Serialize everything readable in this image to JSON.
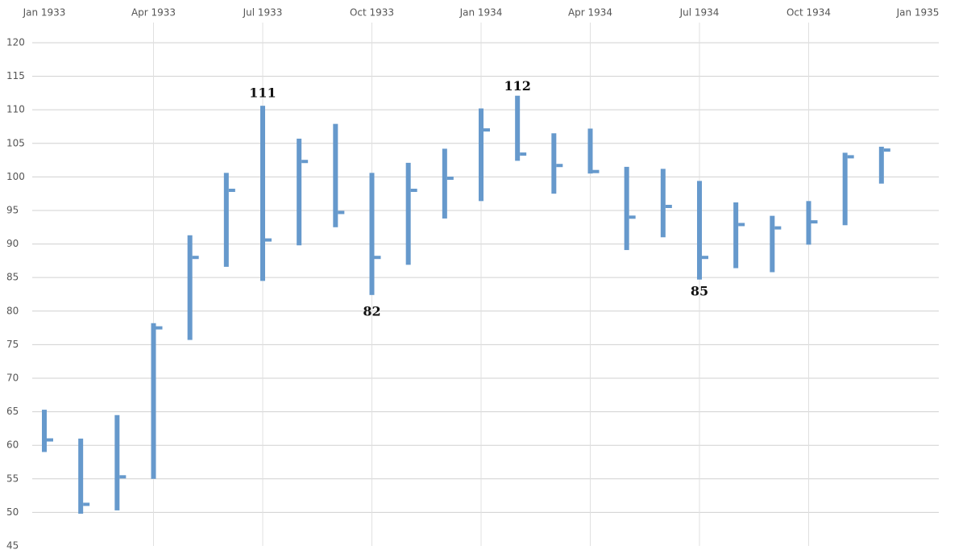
{
  "chart_data": {
    "type": "hlc",
    "x": [
      "1933-01",
      "1933-02",
      "1933-03",
      "1933-04",
      "1933-05",
      "1933-06",
      "1933-07",
      "1933-08",
      "1933-09",
      "1933-10",
      "1933-11",
      "1933-12",
      "1934-01",
      "1934-02",
      "1934-03",
      "1934-04",
      "1934-05",
      "1934-06",
      "1934-07",
      "1934-08",
      "1934-09",
      "1934-10",
      "1934-11",
      "1934-12"
    ],
    "high": [
      65.3,
      61,
      64.5,
      78.2,
      91.3,
      100.6,
      110.6,
      105.7,
      107.9,
      100.6,
      102.1,
      104.2,
      110.2,
      112.1,
      106.5,
      107.2,
      101.5,
      101.2,
      99.4,
      96.2,
      94.2,
      96.4,
      103.6,
      104.5
    ],
    "low": [
      59,
      49.8,
      50.3,
      55,
      75.7,
      86.6,
      84.5,
      89.8,
      92.5,
      82.4,
      86.9,
      93.8,
      96.4,
      102.4,
      97.5,
      100.5,
      89.1,
      91,
      84.7,
      86.4,
      85.8,
      89.9,
      92.8,
      99
    ],
    "close": [
      60.8,
      51.2,
      55.3,
      77.5,
      88,
      98,
      90.6,
      102.3,
      94.7,
      88,
      98,
      99.8,
      107,
      103.4,
      101.7,
      100.8,
      94,
      95.6,
      88,
      92.9,
      92.4,
      93.3,
      103,
      104
    ],
    "color": "#6699cc",
    "xlim": [
      "1933-01",
      "1935-01"
    ],
    "xticks": [
      {
        "value": "1933-01",
        "label": "Jan 1933"
      },
      {
        "value": "1933-04",
        "label": "Apr 1933"
      },
      {
        "value": "1933-07",
        "label": "Jul 1933"
      },
      {
        "value": "1933-10",
        "label": "Oct 1933"
      },
      {
        "value": "1934-01",
        "label": "Jan 1934"
      },
      {
        "value": "1934-04",
        "label": "Apr 1934"
      },
      {
        "value": "1934-07",
        "label": "Jul 1934"
      },
      {
        "value": "1934-10",
        "label": "Oct 1934"
      },
      {
        "value": "1935-01",
        "label": "Jan 1935"
      }
    ],
    "ylim": [
      45,
      123
    ],
    "yticks": [
      45,
      50,
      55,
      60,
      65,
      70,
      75,
      80,
      85,
      90,
      95,
      100,
      105,
      110,
      115,
      120
    ],
    "grid": true,
    "annotations": [
      {
        "x": "1933-07",
        "y": 111,
        "text": "111",
        "position": "above"
      },
      {
        "x": "1933-10",
        "y": 82,
        "text": "82",
        "position": "below"
      },
      {
        "x": "1934-02",
        "y": 112,
        "text": "112",
        "position": "above"
      },
      {
        "x": "1934-07",
        "y": 85,
        "text": "85",
        "position": "below"
      }
    ]
  }
}
